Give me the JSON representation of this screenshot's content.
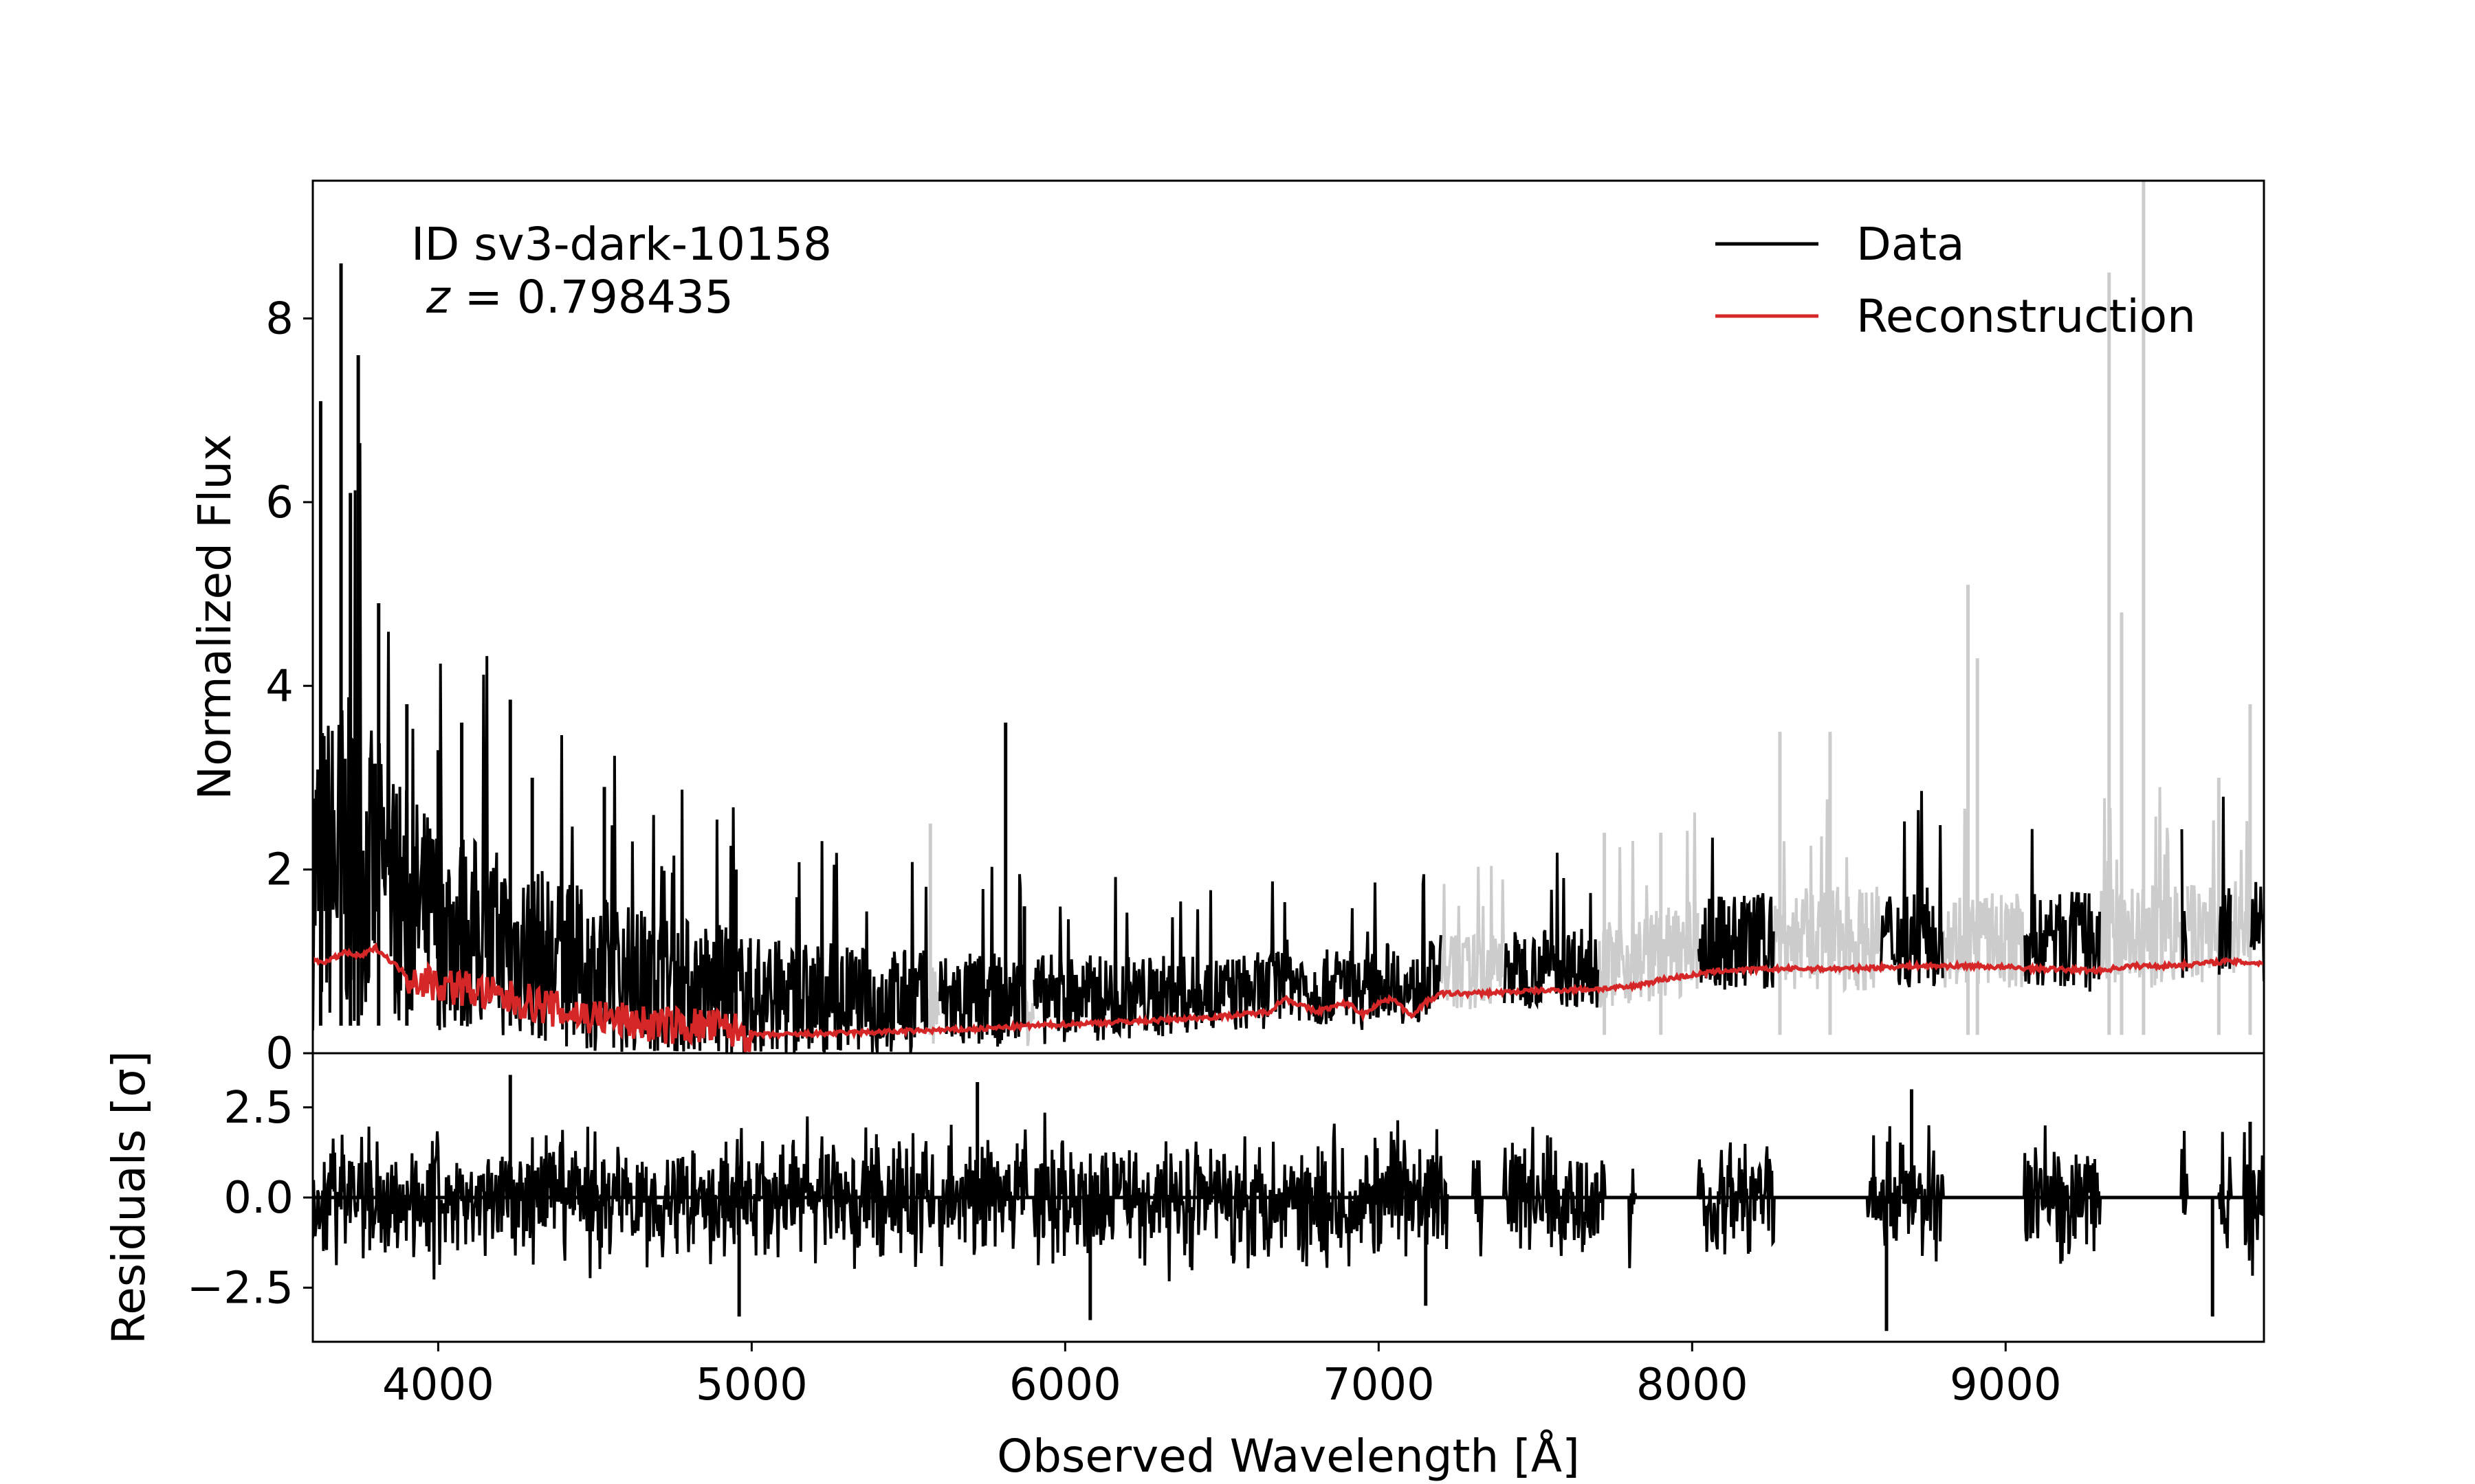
{
  "chart_data": {
    "type": "line",
    "annotation": {
      "id_text": "ID sv3-dark-10158",
      "z_symbol": "z",
      "z_equals": " = ",
      "z_value": "0.798435"
    },
    "xlabel": "Observed Wavelength [Å]",
    "xlim": [
      3600,
      9824
    ],
    "xticks": [
      4000,
      5000,
      6000,
      7000,
      8000,
      9000
    ],
    "xtick_labels": [
      "4000",
      "5000",
      "6000",
      "7000",
      "8000",
      "9000"
    ],
    "legend_position": "top-right",
    "panels": {
      "flux": {
        "ylabel": "Normalized Flux",
        "ylim": [
          0,
          9.5
        ],
        "yticks": [
          0,
          2,
          4,
          6,
          8
        ],
        "ytick_labels": [
          "0",
          "2",
          "4",
          "6",
          "8"
        ],
        "series": [
          {
            "name": "Data",
            "color": "#000000",
            "masked_color": "#cccccc",
            "envelope_x": [
              3600,
              3700,
              3800,
              4000,
              4200,
              4500,
              5000,
              5500,
              6000,
              6500,
              7000,
              7500,
              8000,
              8500,
              9000,
              9500,
              9824
            ],
            "envelope_y": [
              3.0,
              3.2,
              2.6,
              2.0,
              1.8,
              1.5,
              1.2,
              1.0,
              0.85,
              0.75,
              0.7,
              0.75,
              0.9,
              1.0,
              0.9,
              1.0,
              1.0
            ],
            "spikes": [
              {
                "x": 3625,
                "y": 7.1
              },
              {
                "x": 3690,
                "y": 8.6
              },
              {
                "x": 3720,
                "y": 6.1
              },
              {
                "x": 3745,
                "y": 7.6
              },
              {
                "x": 3810,
                "y": 4.9
              },
              {
                "x": 3900,
                "y": 3.8
              },
              {
                "x": 4000,
                "y": 3.3
              },
              {
                "x": 4075,
                "y": 3.6
              },
              {
                "x": 4230,
                "y": 3.85
              },
              {
                "x": 4300,
                "y": 3.0
              },
              {
                "x": 4530,
                "y": 2.9
              },
              {
                "x": 4950,
                "y": 2.0
              },
              {
                "x": 5810,
                "y": 3.6
              },
              {
                "x": 5870,
                "y": 1.6
              }
            ],
            "masked_spikes": [
              {
                "x": 5570,
                "y": 2.5
              },
              {
                "x": 7720,
                "y": 2.4
              },
              {
                "x": 7900,
                "y": 2.4
              },
              {
                "x": 8280,
                "y": 3.5
              },
              {
                "x": 8440,
                "y": 3.5
              },
              {
                "x": 8880,
                "y": 5.1
              },
              {
                "x": 8910,
                "y": 4.3
              },
              {
                "x": 9330,
                "y": 8.5
              },
              {
                "x": 9440,
                "y": 9.5
              },
              {
                "x": 9370,
                "y": 4.8
              },
              {
                "x": 9780,
                "y": 3.8
              },
              {
                "x": 9680,
                "y": 3.0
              }
            ],
            "masked_ranges": [
              [
                5560,
                5600
              ],
              [
                5870,
                5900
              ],
              [
                7200,
                7400
              ],
              [
                7700,
                8020
              ],
              [
                8260,
                8600
              ],
              [
                8800,
                9060
              ],
              [
                9300,
                9560
              ],
              [
                9580,
                9680
              ],
              [
                9720,
                9780
              ]
            ]
          },
          {
            "name": "Reconstruction",
            "color": "#d62728",
            "x": [
              3600,
              3650,
              3700,
              3750,
              3800,
              3850,
              3900,
              4000,
              4100,
              4200,
              4300,
              4400,
              4500,
              4600,
              4700,
              4800,
              4900,
              5000,
              5100,
              5300,
              5500,
              5700,
              5900,
              6100,
              6300,
              6500,
              6650,
              6700,
              6800,
              6900,
              6950,
              7000,
              7050,
              7100,
              7150,
              7200,
              7300,
              7500,
              7700,
              7800,
              7900,
              8000,
              8100,
              8300,
              8500,
              8700,
              8900,
              9100,
              9300,
              9400,
              9500,
              9600,
              9700,
              9824
            ],
            "y": [
              1.0,
              1.0,
              1.1,
              1.05,
              1.15,
              1.0,
              0.85,
              0.75,
              0.7,
              0.6,
              0.55,
              0.45,
              0.4,
              0.35,
              0.3,
              0.3,
              0.28,
              0.2,
              0.2,
              0.22,
              0.24,
              0.26,
              0.3,
              0.33,
              0.36,
              0.4,
              0.45,
              0.6,
              0.45,
              0.55,
              0.42,
              0.55,
              0.6,
              0.4,
              0.55,
              0.65,
              0.65,
              0.68,
              0.7,
              0.72,
              0.8,
              0.85,
              0.9,
              0.92,
              0.92,
              0.95,
              0.95,
              0.92,
              0.9,
              0.95,
              0.95,
              0.97,
              1.0,
              0.98
            ],
            "noise_x": [
              3900,
              5000
            ],
            "noise_amplitude": 0.35
          }
        ]
      },
      "residuals": {
        "ylabel_prefix": "Residuals ",
        "ylabel_sigma": "[σ]",
        "ylim": [
          -4.0,
          4.0
        ],
        "yticks": [
          -2.5,
          0.0,
          2.5
        ],
        "ytick_labels": [
          "−2.5",
          "0.0",
          "2.5"
        ],
        "series": [
          {
            "name": "Residuals",
            "color": "#000000",
            "typical_amplitude": 1.0,
            "extremes": [
              {
                "x": 4230,
                "y": 3.4
              },
              {
                "x": 4960,
                "y": -3.3
              },
              {
                "x": 5720,
                "y": 3.2
              },
              {
                "x": 6080,
                "y": -3.4
              },
              {
                "x": 7150,
                "y": -3.0
              },
              {
                "x": 8620,
                "y": -3.7
              },
              {
                "x": 8700,
                "y": 3.0
              },
              {
                "x": 9660,
                "y": -3.3
              },
              {
                "x": 9780,
                "y": 2.1
              }
            ],
            "zero_segments": [
              [
                5580,
                5600
              ],
              [
                5880,
                5900
              ],
              [
                7220,
                7300
              ],
              [
                7330,
                7400
              ],
              [
                7720,
                7800
              ],
              [
                7820,
                8020
              ],
              [
                8260,
                8560
              ],
              [
                8800,
                9060
              ],
              [
                9300,
                9560
              ],
              [
                9580,
                9680
              ],
              [
                9720,
                9760
              ]
            ]
          }
        ]
      }
    }
  }
}
